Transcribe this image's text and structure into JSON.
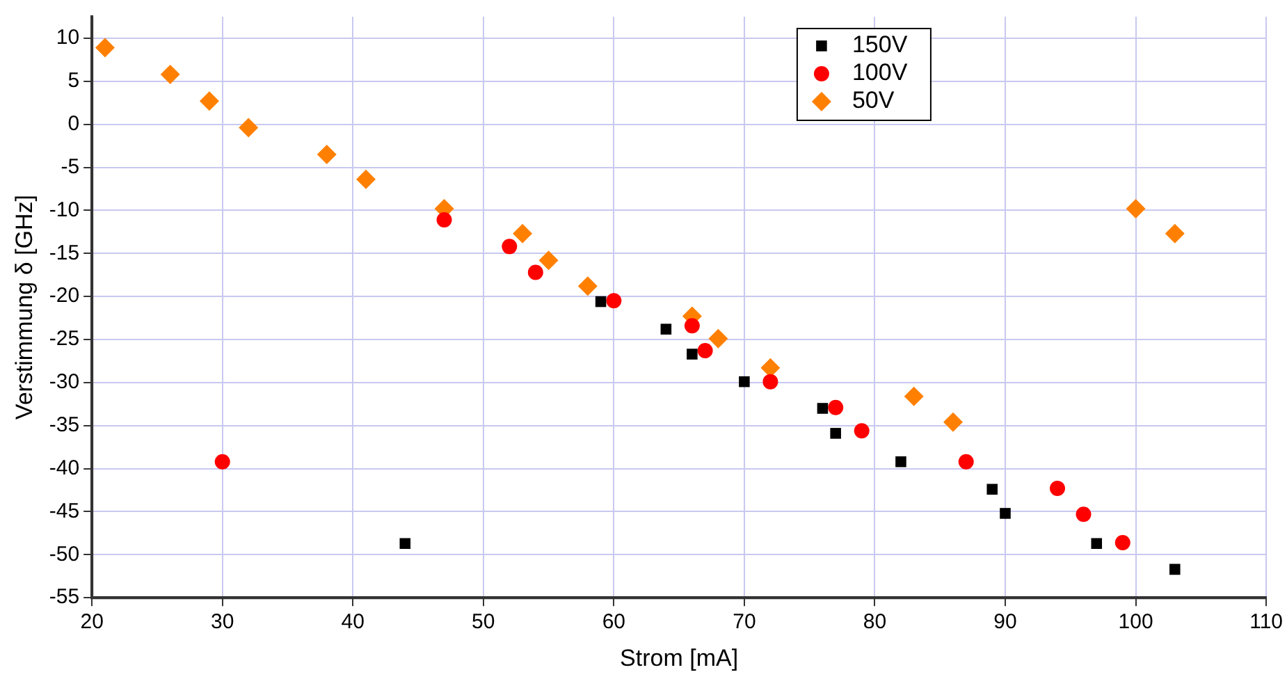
{
  "chart_data": {
    "type": "scatter",
    "xlabel": "Strom [mA]",
    "ylabel": "Verstimmung δ [GHz]",
    "xlim": [
      20,
      110
    ],
    "xticks": [
      20,
      30,
      40,
      50,
      60,
      70,
      80,
      90,
      100,
      110
    ],
    "ylim": [
      -55,
      12.5
    ],
    "yticks": [
      -55,
      -50,
      -45,
      -40,
      -35,
      -30,
      -25,
      -20,
      -15,
      -10,
      -5,
      0,
      5,
      10
    ],
    "grid": true,
    "legend": "top right",
    "series": [
      {
        "name": "150V",
        "color": "#000000",
        "marker": "square",
        "x": [
          44,
          59,
          64,
          66,
          70,
          76,
          77,
          82,
          89,
          90,
          97,
          103
        ],
        "values": [
          -48.7,
          -20.6,
          -23.8,
          -26.7,
          -29.9,
          -33,
          -35.9,
          -39.2,
          -42.4,
          -45.2,
          -48.7,
          -51.7
        ]
      },
      {
        "name": "100V",
        "color": "#ff0000",
        "marker": "circle",
        "x": [
          30,
          47,
          52,
          54,
          60,
          66,
          67,
          72,
          77,
          79,
          87,
          94,
          96,
          99
        ],
        "values": [
          -39.2,
          -11.1,
          -14.2,
          -17.2,
          -20.5,
          -23.4,
          -26.3,
          -29.9,
          -32.9,
          -35.6,
          -39.2,
          -42.3,
          -45.3,
          -48.6
        ]
      },
      {
        "name": "50V",
        "color": "#ff8000",
        "marker": "diamond",
        "x": [
          21,
          26,
          29,
          32,
          38,
          41,
          47,
          53,
          55,
          58,
          66,
          68,
          72,
          83,
          86,
          100,
          103
        ],
        "values": [
          8.9,
          5.8,
          2.7,
          -0.4,
          -3.5,
          -6.4,
          -9.8,
          -12.7,
          -15.8,
          -18.8,
          -22.3,
          -24.9,
          -28.3,
          -31.6,
          -34.6,
          -9.8,
          -12.7
        ]
      }
    ]
  }
}
